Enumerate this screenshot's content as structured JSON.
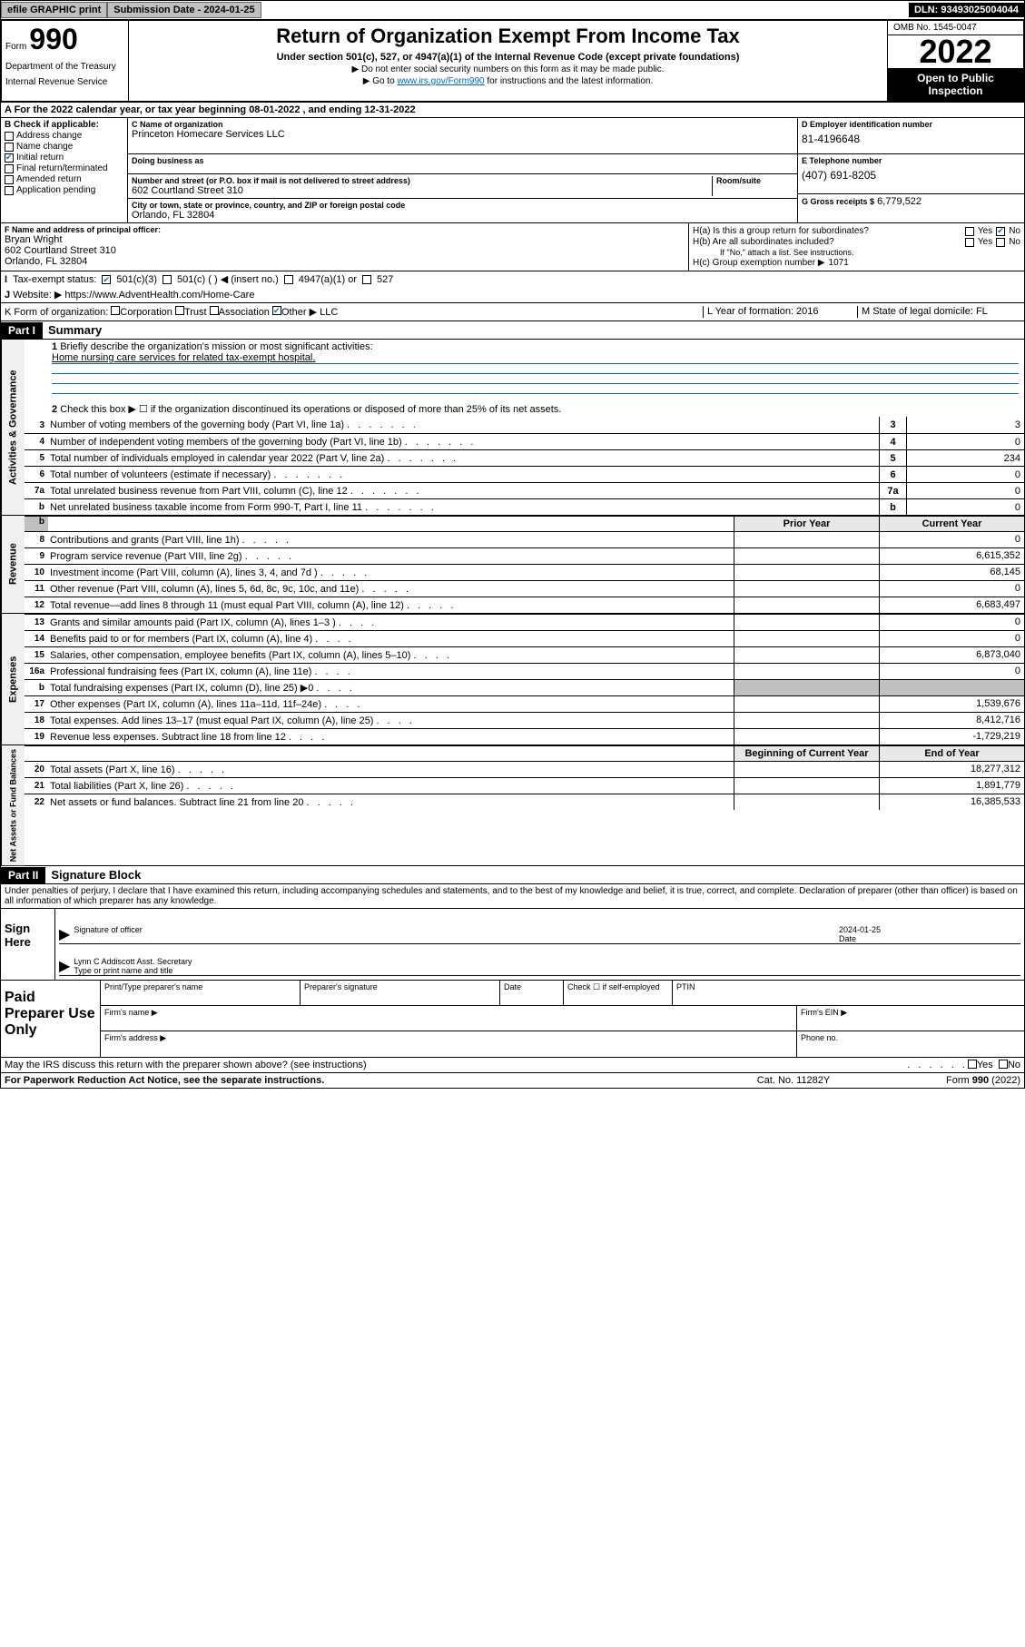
{
  "top_bar": {
    "efile": "efile GRAPHIC print",
    "submission_label": "Submission Date - 2024-01-25",
    "dln": "DLN: 93493025004044"
  },
  "header": {
    "form_label": "Form",
    "form_num": "990",
    "title": "Return of Organization Exempt From Income Tax",
    "subtitle": "Under section 501(c), 527, or 4947(a)(1) of the Internal Revenue Code (except private foundations)",
    "line1": "▶ Do not enter social security numbers on this form as it may be made public.",
    "line2_pre": "▶ Go to ",
    "line2_link": "www.irs.gov/Form990",
    "line2_post": " for instructions and the latest information.",
    "dept": "Department of the Treasury",
    "irs": "Internal Revenue Service",
    "omb": "OMB No. 1545-0047",
    "year": "2022",
    "open_public": "Open to Public Inspection"
  },
  "row_a": "A For the 2022 calendar year, or tax year beginning 08-01-2022    , and ending 12-31-2022",
  "col_b": {
    "header": "B Check if applicable:",
    "items": [
      "Address change",
      "Name change",
      "Initial return",
      "Final return/terminated",
      "Amended return",
      "Application pending"
    ],
    "checked_idx": 2
  },
  "col_c": {
    "c_label": "C Name of organization",
    "org": "Princeton Homecare Services LLC",
    "dba_label": "Doing business as",
    "street_label": "Number and street (or P.O. box if mail is not delivered to street address)",
    "suite_label": "Room/suite",
    "street": "602 Courtland Street 310",
    "city_label": "City or town, state or province, country, and ZIP or foreign postal code",
    "city": "Orlando, FL  32804"
  },
  "col_d": {
    "label": "D Employer identification number",
    "val": "81-4196648"
  },
  "col_e": {
    "label": "E Telephone number",
    "val": "(407) 691-8205"
  },
  "col_g": {
    "label": "G Gross receipts $",
    "val": "6,779,522"
  },
  "officer": {
    "f_label": "F Name and address of principal officer:",
    "name": "Bryan Wright",
    "street": "602 Courtland Street 310",
    "city": "Orlando, FL  32804"
  },
  "h": {
    "a": "H(a)  Is this a group return for subordinates?",
    "b": "H(b)  Are all subordinates included?",
    "b_note": "If \"No,\" attach a list. See instructions.",
    "c": "H(c)  Group exemption number ▶",
    "c_val": "1071",
    "yes": "Yes",
    "no": "No"
  },
  "row_i": {
    "label": "Tax-exempt status:",
    "opts": [
      "501(c)(3)",
      "501(c) (  ) ◀ (insert no.)",
      "4947(a)(1) or",
      "527"
    ]
  },
  "row_j": {
    "label": "Website: ▶",
    "val": "https://www.AdventHealth.com/Home-Care"
  },
  "row_k": {
    "label": "K Form of organization:",
    "opts": [
      "Corporation",
      "Trust",
      "Association",
      "Other ▶"
    ],
    "other_val": "LLC",
    "l": "L Year of formation: 2016",
    "m": "M State of legal domicile: FL"
  },
  "part1": {
    "hdr": "Part I",
    "title": "Summary",
    "l1": "Briefly describe the organization's mission or most significant activities:",
    "mission": "Home nursing care services for related tax-exempt hospital.",
    "l2": "Check this box ▶ ☐  if the organization discontinued its operations or disposed of more than 25% of its net assets.",
    "gov": [
      {
        "n": "3",
        "d": "Number of voting members of the governing body (Part VI, line 1a)",
        "v": "3"
      },
      {
        "n": "4",
        "d": "Number of independent voting members of the governing body (Part VI, line 1b)",
        "v": "0"
      },
      {
        "n": "5",
        "d": "Total number of individuals employed in calendar year 2022 (Part V, line 2a)",
        "v": "234"
      },
      {
        "n": "6",
        "d": "Total number of volunteers (estimate if necessary)",
        "v": "0"
      },
      {
        "n": "7a",
        "d": "Total unrelated business revenue from Part VIII, column (C), line 12",
        "v": "0"
      },
      {
        "n": "b",
        "d": "Net unrelated business taxable income from Form 990-T, Part I, line 11",
        "v": "0"
      }
    ],
    "prior": "Prior Year",
    "current": "Current Year",
    "rev": [
      {
        "n": "8",
        "d": "Contributions and grants (Part VIII, line 1h)",
        "p": "",
        "c": "0"
      },
      {
        "n": "9",
        "d": "Program service revenue (Part VIII, line 2g)",
        "p": "",
        "c": "6,615,352"
      },
      {
        "n": "10",
        "d": "Investment income (Part VIII, column (A), lines 3, 4, and 7d )",
        "p": "",
        "c": "68,145"
      },
      {
        "n": "11",
        "d": "Other revenue (Part VIII, column (A), lines 5, 6d, 8c, 9c, 10c, and 11e)",
        "p": "",
        "c": "0"
      },
      {
        "n": "12",
        "d": "Total revenue—add lines 8 through 11 (must equal Part VIII, column (A), line 12)",
        "p": "",
        "c": "6,683,497"
      }
    ],
    "exp": [
      {
        "n": "13",
        "d": "Grants and similar amounts paid (Part IX, column (A), lines 1–3 )",
        "p": "",
        "c": "0"
      },
      {
        "n": "14",
        "d": "Benefits paid to or for members (Part IX, column (A), line 4)",
        "p": "",
        "c": "0"
      },
      {
        "n": "15",
        "d": "Salaries, other compensation, employee benefits (Part IX, column (A), lines 5–10)",
        "p": "",
        "c": "6,873,040"
      },
      {
        "n": "16a",
        "d": "Professional fundraising fees (Part IX, column (A), line 11e)",
        "p": "",
        "c": "0"
      },
      {
        "n": "b",
        "d": "Total fundraising expenses (Part IX, column (D), line 25) ▶0",
        "p": "shade",
        "c": "shade"
      },
      {
        "n": "17",
        "d": "Other expenses (Part IX, column (A), lines 11a–11d, 11f–24e)",
        "p": "",
        "c": "1,539,676"
      },
      {
        "n": "18",
        "d": "Total expenses. Add lines 13–17 (must equal Part IX, column (A), line 25)",
        "p": "",
        "c": "8,412,716"
      },
      {
        "n": "19",
        "d": "Revenue less expenses. Subtract line 18 from line 12",
        "p": "",
        "c": "-1,729,219"
      }
    ],
    "begin": "Beginning of Current Year",
    "end": "End of Year",
    "net": [
      {
        "n": "20",
        "d": "Total assets (Part X, line 16)",
        "p": "",
        "c": "18,277,312"
      },
      {
        "n": "21",
        "d": "Total liabilities (Part X, line 26)",
        "p": "",
        "c": "1,891,779"
      },
      {
        "n": "22",
        "d": "Net assets or fund balances. Subtract line 21 from line 20",
        "p": "",
        "c": "16,385,533"
      }
    ],
    "side_gov": "Activities & Governance",
    "side_rev": "Revenue",
    "side_exp": "Expenses",
    "side_net": "Net Assets or Fund Balances"
  },
  "part2": {
    "hdr": "Part II",
    "title": "Signature Block",
    "decl": "Under penalties of perjury, I declare that I have examined this return, including accompanying schedules and statements, and to the best of my knowledge and belief, it is true, correct, and complete. Declaration of preparer (other than officer) is based on all information of which preparer has any knowledge.",
    "sign_here": "Sign Here",
    "sig_officer": "Signature of officer",
    "sig_date": "2024-01-25",
    "date_lbl": "Date",
    "officer_name": "Lynn C Addiscott  Asst. Secretary",
    "type_lbl": "Type or print name and title",
    "paid": "Paid Preparer Use Only",
    "prep_name_lbl": "Print/Type preparer's name",
    "prep_sig_lbl": "Preparer's signature",
    "prep_date_lbl": "Date",
    "prep_check": "Check ☐ if self-employed",
    "ptin": "PTIN",
    "firm_name": "Firm's name    ▶",
    "firm_ein": "Firm's EIN ▶",
    "firm_addr": "Firm's address ▶",
    "phone": "Phone no."
  },
  "footer": {
    "discuss": "May the IRS discuss this return with the preparer shown above? (see instructions)",
    "yes": "Yes",
    "no": "No",
    "paperwork": "For Paperwork Reduction Act Notice, see the separate instructions.",
    "cat": "Cat. No. 11282Y",
    "form": "Form 990 (2022)"
  }
}
